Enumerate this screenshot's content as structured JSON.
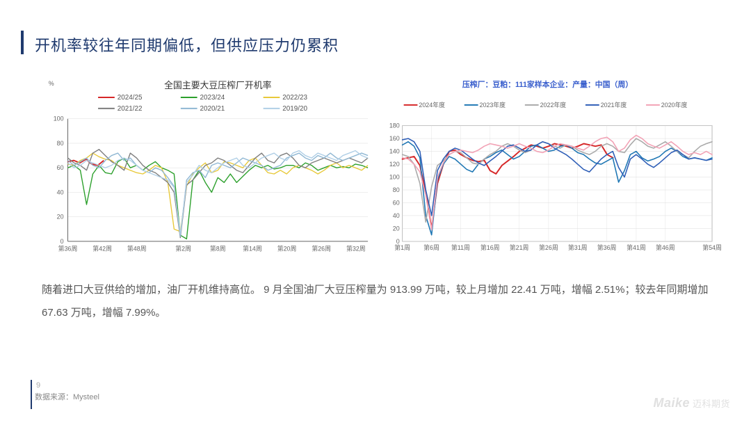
{
  "title": "开机率较往年同期偏低，但供应压力仍累积",
  "body_text": "随着进口大豆供给的增加，油厂开机维持高位。 9 月全国油厂大豆压榨量为 913.99 万吨，较上月增加 22.41 万吨，增幅 2.51%；较去年同期增加 67.63 万吨，增幅 7.99%。",
  "page_number": "9",
  "source_label": "数据来源：Mysteel",
  "logo_text": "Maike",
  "logo_cn": "迈科期货",
  "chart1": {
    "type": "line",
    "title": "全国主要大豆压榨厂开机率",
    "y_unit": "%",
    "ylim": [
      0,
      100
    ],
    "yticks": [
      0,
      20,
      40,
      60,
      80,
      100
    ],
    "xticks": [
      "第36周",
      "第42周",
      "第48周",
      "第2周",
      "第8周",
      "第14周",
      "第20周",
      "第26周",
      "第32周"
    ],
    "xtick_pos": [
      0,
      0.115,
      0.23,
      0.385,
      0.5,
      0.615,
      0.73,
      0.845,
      0.96
    ],
    "series": [
      {
        "name": "2024/25",
        "color": "#d62728",
        "width": 2,
        "data": [
          65,
          66,
          64,
          67,
          63,
          62,
          66
        ],
        "xstart": 0,
        "xend": 0.12
      },
      {
        "name": "2023/24",
        "color": "#2ca02c",
        "width": 1.4,
        "data": [
          60,
          62,
          58,
          30,
          55,
          62,
          56,
          55,
          65,
          68,
          60,
          62,
          58,
          62,
          65,
          60,
          58,
          55,
          5,
          2,
          50,
          58,
          48,
          40,
          52,
          48,
          55,
          48,
          53,
          58,
          62,
          60,
          62,
          59,
          60,
          62,
          62,
          60,
          64,
          62,
          58,
          60,
          62,
          60,
          61,
          60,
          63,
          62,
          60
        ],
        "xstart": 0,
        "xend": 1
      },
      {
        "name": "2022/23",
        "color": "#e8c93a",
        "width": 1.4,
        "data": [
          63,
          62,
          66,
          68,
          72,
          69,
          67,
          66,
          62,
          60,
          58,
          56,
          55,
          58,
          62,
          60,
          48,
          10,
          8,
          45,
          55,
          60,
          64,
          56,
          58,
          65,
          64,
          62,
          60,
          66,
          68,
          62,
          56,
          55,
          58,
          55,
          60,
          62,
          60,
          58,
          55,
          58,
          62,
          64,
          60,
          62,
          60,
          58,
          62
        ],
        "xstart": 0,
        "xend": 1
      },
      {
        "name": "2021/22",
        "color": "#7e7e7e",
        "width": 1.4,
        "data": [
          68,
          64,
          62,
          58,
          72,
          75,
          70,
          65,
          62,
          58,
          72,
          68,
          62,
          58,
          56,
          52,
          48,
          40,
          3,
          46,
          50,
          56,
          62,
          64,
          68,
          66,
          62,
          58,
          56,
          62,
          68,
          72,
          66,
          64,
          70,
          72,
          68,
          62,
          60,
          64,
          66,
          68,
          66,
          64,
          66,
          68,
          66,
          64,
          68
        ],
        "xstart": 0,
        "xend": 1
      },
      {
        "name": "2020/21",
        "color": "#8fb7d3",
        "width": 1.4,
        "data": [
          66,
          62,
          65,
          68,
          62,
          60,
          66,
          70,
          72,
          66,
          68,
          62,
          58,
          56,
          60,
          58,
          52,
          45,
          4,
          50,
          56,
          58,
          52,
          62,
          64,
          62,
          60,
          64,
          68,
          66,
          64,
          62,
          58,
          60,
          62,
          68,
          70,
          72,
          68,
          66,
          70,
          68,
          72,
          68,
          66,
          68,
          70,
          72,
          70
        ],
        "xstart": 0,
        "xend": 1
      },
      {
        "name": "2019/20",
        "color": "#b0cfe6",
        "width": 1.4,
        "data": [
          64,
          60,
          62,
          66,
          64,
          62,
          60,
          62,
          66,
          68,
          66,
          62,
          58,
          56,
          54,
          52,
          50,
          44,
          6,
          48,
          54,
          62,
          58,
          56,
          60,
          64,
          66,
          68,
          62,
          60,
          64,
          68,
          70,
          72,
          68,
          66,
          72,
          74,
          70,
          68,
          72,
          70,
          68,
          66,
          70,
          72,
          74,
          70,
          68
        ],
        "xstart": 0,
        "xend": 1
      }
    ],
    "legend_cols": [
      [
        {
          "name": "2024/25",
          "color": "#d62728"
        },
        {
          "name": "2021/22",
          "color": "#7e7e7e"
        }
      ],
      [
        {
          "name": "2023/24",
          "color": "#2ca02c"
        },
        {
          "name": "2020/21",
          "color": "#8fb7d3"
        }
      ],
      [
        {
          "name": "2022/23",
          "color": "#e8c93a"
        },
        {
          "name": "2019/20",
          "color": "#b0cfe6"
        }
      ]
    ],
    "grid_color": "#dddddd",
    "axis_color": "#666666",
    "label_fontsize": 9
  },
  "chart2": {
    "type": "line",
    "title": "压榨厂：豆粕：111家样本企业：产量：中国（周）",
    "ylim": [
      0,
      180
    ],
    "yticks": [
      0,
      20,
      40,
      60,
      80,
      100,
      120,
      140,
      160,
      180
    ],
    "xticks": [
      "第1周",
      "第6周",
      "第11周",
      "第16周",
      "第21周",
      "第26周",
      "第31周",
      "第36周",
      "第41周",
      "第46周",
      "第54周"
    ],
    "xtick_pos": [
      0,
      0.094,
      0.188,
      0.283,
      0.377,
      0.472,
      0.566,
      0.66,
      0.755,
      0.849,
      1
    ],
    "series": [
      {
        "name": "2024年度",
        "color": "#d62728",
        "width": 2,
        "data": [
          128,
          130,
          132,
          118,
          75,
          20,
          90,
          120,
          140,
          142,
          135,
          130,
          126,
          124,
          126,
          110,
          105,
          118,
          125,
          132,
          140,
          145,
          150,
          148,
          145,
          148,
          152,
          150,
          148,
          145,
          148,
          152,
          150,
          148,
          150,
          135,
          130
        ],
        "xstart": 0,
        "xend": 0.68
      },
      {
        "name": "2023年度",
        "color": "#1f77b4",
        "width": 1.6,
        "data": [
          150,
          155,
          148,
          130,
          40,
          10,
          95,
          120,
          132,
          128,
          120,
          112,
          108,
          120,
          128,
          132,
          138,
          142,
          135,
          128,
          132,
          140,
          148,
          150,
          145,
          140,
          142,
          148,
          150,
          145,
          138,
          135,
          128,
          122,
          120,
          125,
          130,
          92,
          110,
          135,
          140,
          130,
          125,
          128,
          132,
          140,
          145,
          140,
          132,
          128,
          130,
          128,
          126,
          130
        ],
        "xstart": 0,
        "xend": 1
      },
      {
        "name": "2022年度",
        "color": "#aaaaaa",
        "width": 1.6,
        "data": [
          135,
          132,
          120,
          90,
          30,
          85,
          118,
          125,
          135,
          140,
          138,
          130,
          122,
          120,
          128,
          135,
          140,
          148,
          152,
          148,
          142,
          138,
          142,
          150,
          155,
          152,
          148,
          145,
          150,
          148,
          142,
          138,
          135,
          140,
          148,
          152,
          148,
          140,
          138,
          150,
          160,
          155,
          148,
          145,
          150,
          155,
          148,
          140,
          135,
          130,
          140,
          148,
          152,
          155
        ],
        "xstart": 0,
        "xend": 1
      },
      {
        "name": "2021年度",
        "color": "#2e5eb7",
        "width": 1.6,
        "data": [
          158,
          160,
          155,
          140,
          80,
          40,
          110,
          128,
          140,
          145,
          142,
          135,
          128,
          122,
          118,
          125,
          132,
          140,
          148,
          150,
          145,
          140,
          142,
          150,
          155,
          152,
          145,
          140,
          135,
          128,
          120,
          112,
          108,
          118,
          128,
          135,
          140,
          115,
          100,
          128,
          135,
          128,
          120,
          115,
          122,
          130,
          138,
          142,
          135,
          128,
          130,
          128,
          126,
          128
        ],
        "xstart": 0,
        "xend": 1
      },
      {
        "name": "2020年度",
        "color": "#f2a2b5",
        "width": 1.6,
        "data": [
          130,
          128,
          120,
          108,
          72,
          18,
          100,
          122,
          135,
          140,
          142,
          140,
          138,
          142,
          148,
          152,
          150,
          148,
          145,
          148,
          152,
          148,
          145,
          140,
          138,
          142,
          148,
          152,
          150,
          148,
          145,
          142,
          148,
          155,
          160,
          162,
          155,
          140,
          145,
          158,
          165,
          160,
          152,
          148,
          145,
          150,
          155,
          148,
          140,
          135,
          138,
          135,
          140,
          135
        ],
        "xstart": 0,
        "xend": 1
      }
    ],
    "legend": [
      {
        "name": "2024年度",
        "color": "#d62728"
      },
      {
        "name": "2023年度",
        "color": "#1f77b4"
      },
      {
        "name": "2022年度",
        "color": "#aaaaaa"
      },
      {
        "name": "2021年度",
        "color": "#2e5eb7"
      },
      {
        "name": "2020年度",
        "color": "#f2a2b5"
      }
    ],
    "grid_color": "#dddddd",
    "axis_color": "#666666",
    "border_color": "#888888",
    "label_fontsize": 8
  }
}
